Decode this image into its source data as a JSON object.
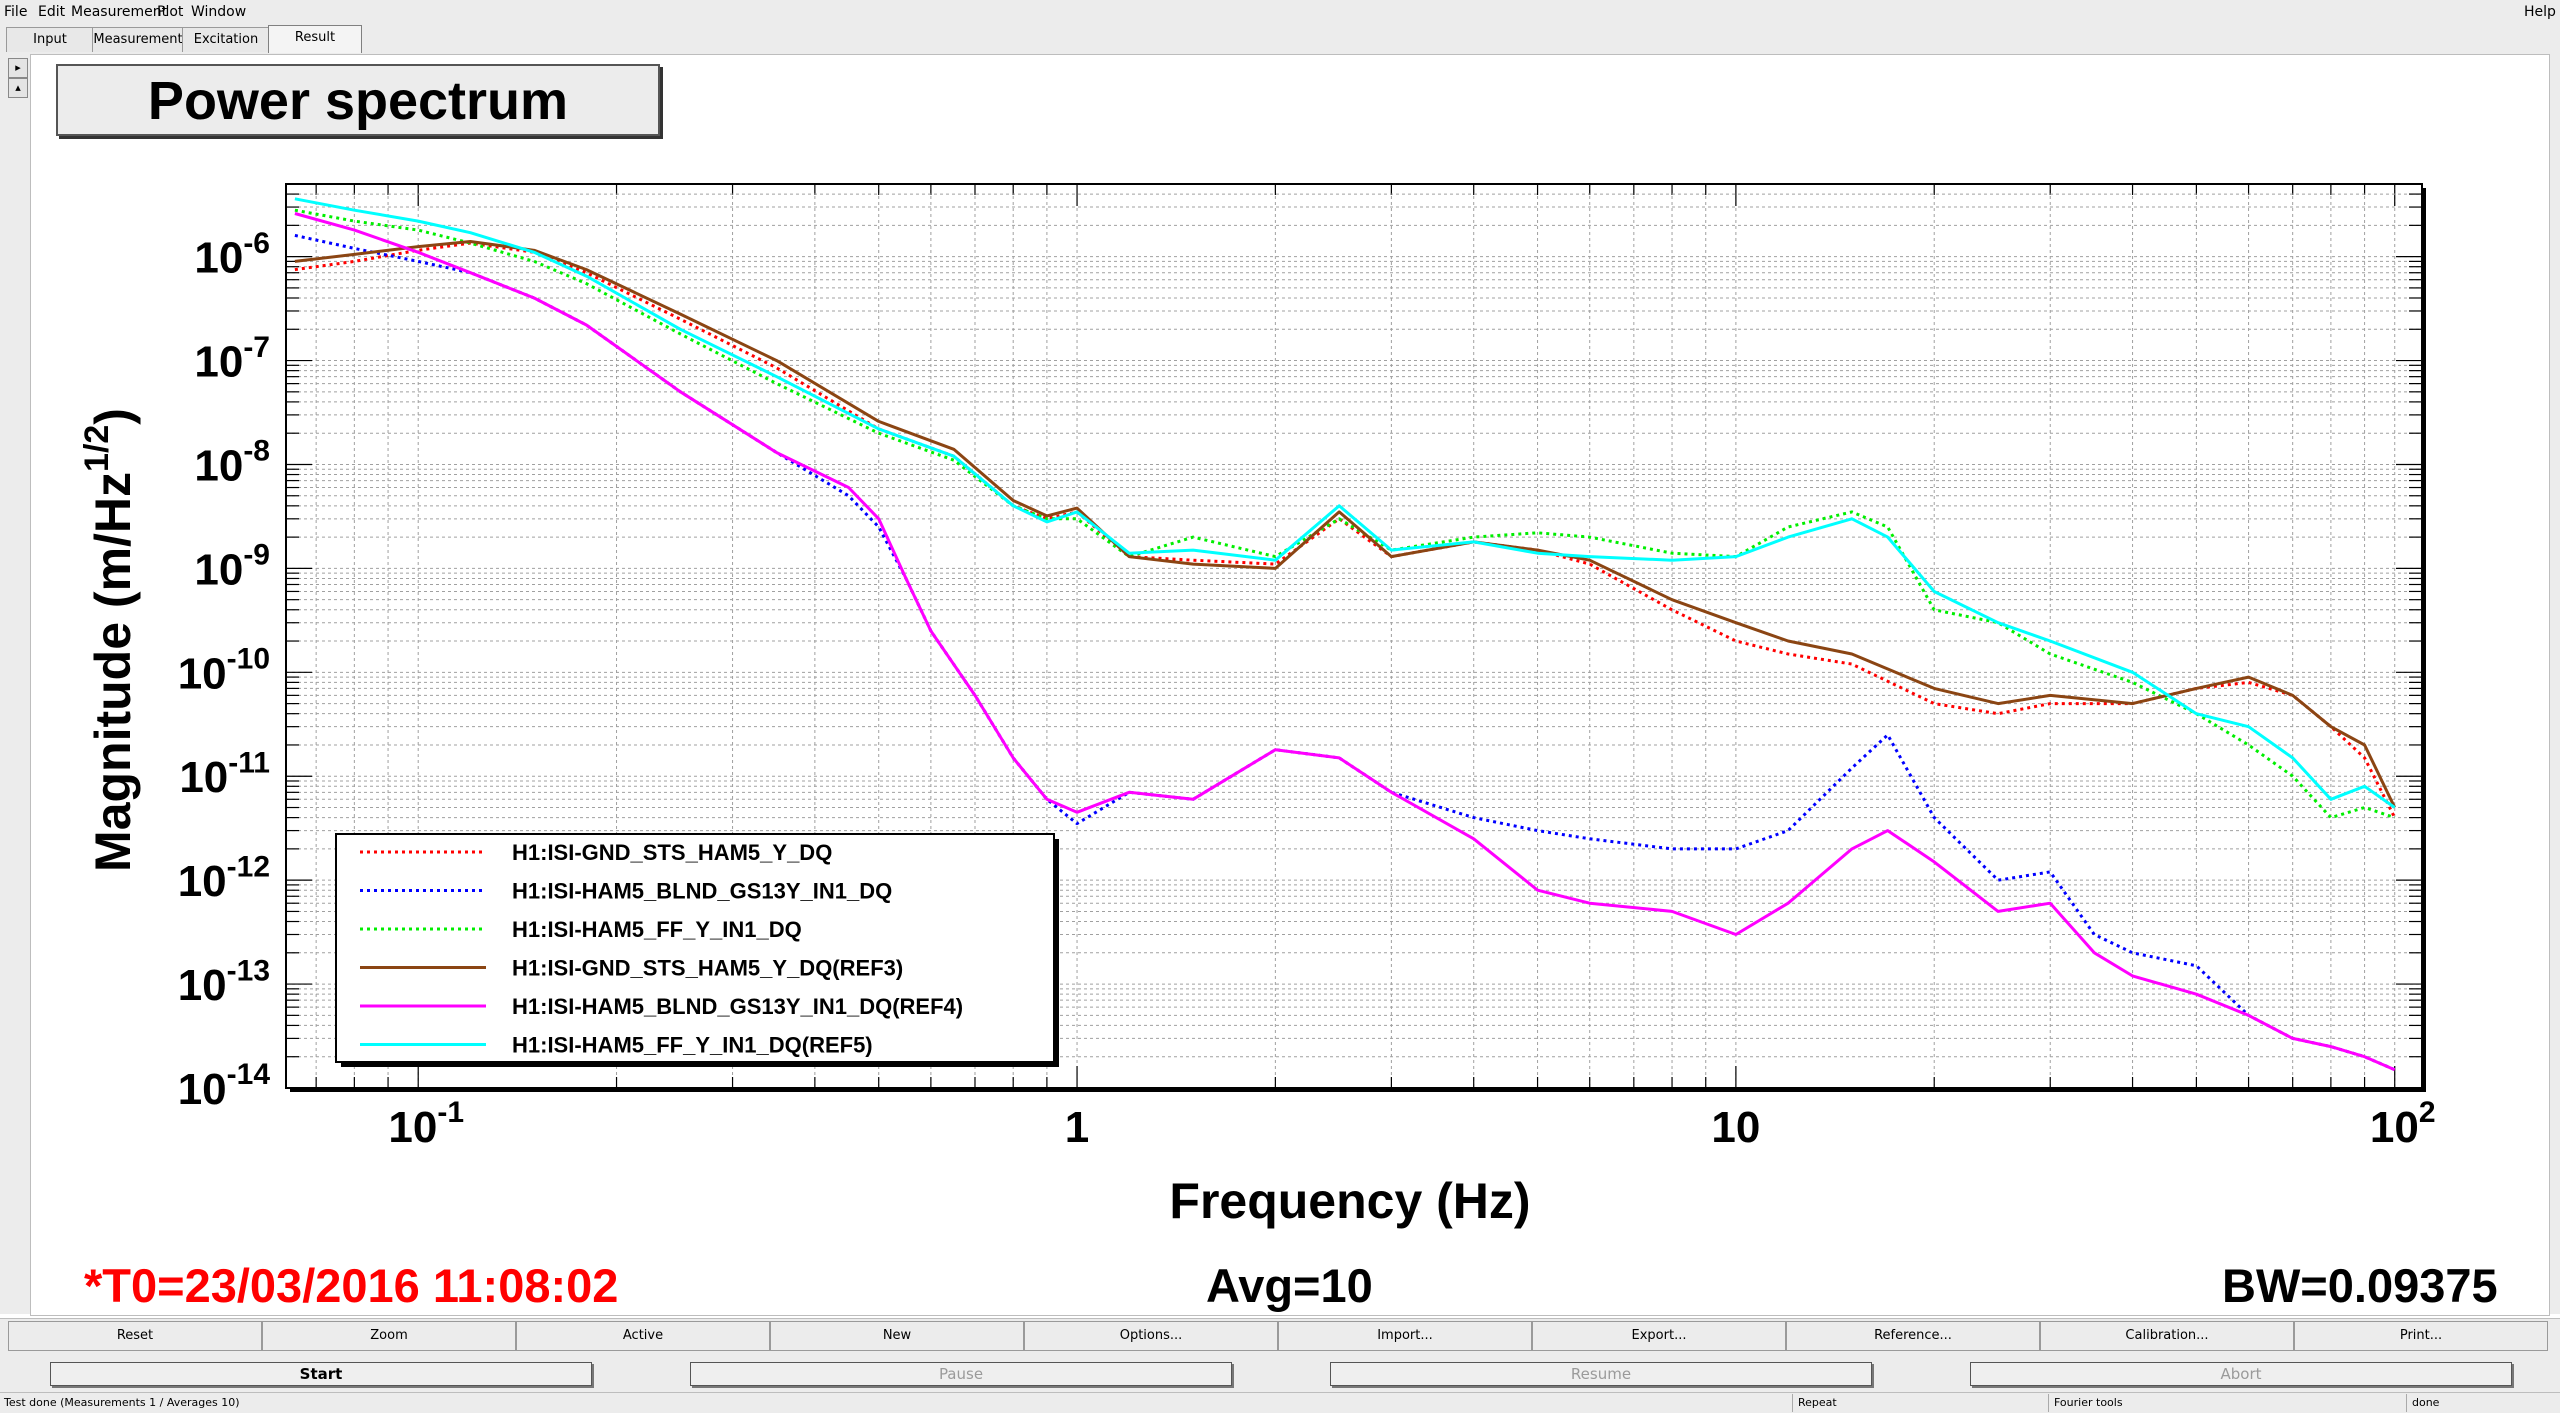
{
  "menu": {
    "file": "File",
    "edit": "Edit",
    "measurement": "Measurement",
    "plot": "Plot",
    "window": "Window",
    "help": "Help"
  },
  "tabs": [
    {
      "label": "Input"
    },
    {
      "label": "Measurement"
    },
    {
      "label": "Excitation"
    },
    {
      "label": "Result"
    }
  ],
  "plot_title": "Power spectrum",
  "chart_data": {
    "type": "line",
    "title": "Power spectrum",
    "xlabel": "Frequency (Hz)",
    "ylabel_main": "Magnitude (m/Hz",
    "ylabel_sup": "1/2",
    "ylabel_close": ")",
    "xscale": "log",
    "yscale": "log",
    "xlim": [
      0.063,
      110
    ],
    "ylim": [
      1e-14,
      5e-06
    ],
    "grid": true,
    "legend_placement": "bottom-left",
    "x_ticks": [
      {
        "value": 0.1,
        "base": "10",
        "exp": "-1"
      },
      {
        "value": 1,
        "base": "1",
        "exp": ""
      },
      {
        "value": 10,
        "base": "10",
        "exp": ""
      },
      {
        "value": 100,
        "base": "10",
        "exp": "2"
      }
    ],
    "y_ticks": [
      {
        "value": 1e-06,
        "base": "10",
        "exp": "-6"
      },
      {
        "value": 1e-07,
        "base": "10",
        "exp": "-7"
      },
      {
        "value": 1e-08,
        "base": "10",
        "exp": "-8"
      },
      {
        "value": 1e-09,
        "base": "10",
        "exp": "-9"
      },
      {
        "value": 1e-10,
        "base": "10",
        "exp": "-10"
      },
      {
        "value": 1e-11,
        "base": "10",
        "exp": "-11"
      },
      {
        "value": 1e-12,
        "base": "10",
        "exp": "-12"
      },
      {
        "value": 1e-13,
        "base": "10",
        "exp": "-13"
      },
      {
        "value": 1e-14,
        "base": "10",
        "exp": "-14"
      }
    ],
    "series": [
      {
        "name": "H1:ISI-GND_STS_HAM5_Y_DQ",
        "color": "#ff0000",
        "dashed": true,
        "x": [
          0.065,
          0.08,
          0.1,
          0.12,
          0.15,
          0.18,
          0.25,
          0.35,
          0.5,
          0.65,
          0.8,
          0.9,
          1.0,
          1.2,
          1.5,
          2.0,
          2.5,
          3.0,
          4.0,
          5.0,
          6.0,
          8.0,
          10.0,
          12.0,
          15.0,
          20.0,
          25.0,
          30.0,
          40.0,
          50.0,
          60.0,
          70.0,
          80.0,
          90.0,
          100.0
        ],
        "y": [
          7.5e-07,
          9e-07,
          1.15e-06,
          1.35e-06,
          1.1e-06,
          7e-07,
          2.5e-07,
          8.5e-08,
          2.2e-08,
          1.2e-08,
          4e-09,
          3e-09,
          3.5e-09,
          1.3e-09,
          1.2e-09,
          1.1e-09,
          3e-09,
          1.3e-09,
          1.8e-09,
          1.5e-09,
          1.1e-09,
          4e-10,
          2e-10,
          1.5e-10,
          1.2e-10,
          5e-11,
          4e-11,
          5e-11,
          5e-11,
          7e-11,
          8e-11,
          6e-11,
          3e-11,
          1.5e-11,
          4e-12
        ]
      },
      {
        "name": "H1:ISI-HAM5_BLND_GS13Y_IN1_DQ",
        "color": "#0000ff",
        "dashed": true,
        "x": [
          0.065,
          0.08,
          0.1,
          0.12,
          0.15,
          0.18,
          0.25,
          0.35,
          0.45,
          0.5,
          0.55,
          0.6,
          0.7,
          0.8,
          0.9,
          1.0,
          1.2,
          1.5,
          2.0,
          2.5,
          3.0,
          4.0,
          5.0,
          6.0,
          8.0,
          10.0,
          12.0,
          15.0,
          17.0,
          20.0,
          25.0,
          30.0,
          35.0,
          40.0,
          50.0,
          60.0,
          70.0,
          80.0,
          90.0,
          100.0
        ],
        "y": [
          1.6e-06,
          1.2e-06,
          9e-07,
          7e-07,
          4e-07,
          2.2e-07,
          5e-08,
          1.3e-08,
          5e-09,
          2.5e-09,
          8e-10,
          2.5e-10,
          6e-11,
          1.5e-11,
          6e-12,
          3.5e-12,
          7e-12,
          6e-12,
          1.8e-11,
          1.5e-11,
          7e-12,
          4e-12,
          3e-12,
          2.5e-12,
          2e-12,
          2e-12,
          3e-12,
          1.2e-11,
          2.5e-11,
          4e-12,
          1e-12,
          1.2e-12,
          3e-13,
          2e-13,
          1.5e-13,
          5e-14,
          3e-14,
          2.5e-14,
          2e-14,
          1.5e-14
        ]
      },
      {
        "name": "H1:ISI-HAM5_FF_Y_IN1_DQ",
        "color": "#00ee00",
        "dashed": true,
        "x": [
          0.065,
          0.08,
          0.1,
          0.12,
          0.15,
          0.18,
          0.25,
          0.35,
          0.5,
          0.65,
          0.8,
          0.9,
          1.0,
          1.2,
          1.5,
          2.0,
          2.5,
          3.0,
          4.0,
          5.0,
          6.0,
          8.0,
          10.0,
          12.0,
          15.0,
          17.0,
          20.0,
          25.0,
          30.0,
          40.0,
          50.0,
          60.0,
          70.0,
          80.0,
          90.0,
          100.0
        ],
        "y": [
          2.8e-06,
          2.2e-06,
          1.8e-06,
          1.35e-06,
          9e-07,
          5.5e-07,
          1.8e-07,
          6e-08,
          2e-08,
          1.1e-08,
          4e-09,
          3e-09,
          3e-09,
          1.3e-09,
          2e-09,
          1.3e-09,
          3e-09,
          1.5e-09,
          2e-09,
          2.2e-09,
          2e-09,
          1.4e-09,
          1.3e-09,
          2.5e-09,
          3.5e-09,
          2.5e-09,
          4e-10,
          3e-10,
          1.5e-10,
          8e-11,
          4e-11,
          2e-11,
          1e-11,
          4e-12,
          5e-12,
          4e-12
        ]
      },
      {
        "name": "H1:ISI-GND_STS_HAM5_Y_DQ(REF3)",
        "color": "#8b4513",
        "dashed": false,
        "x": [
          0.065,
          0.08,
          0.1,
          0.12,
          0.15,
          0.18,
          0.25,
          0.35,
          0.5,
          0.65,
          0.8,
          0.9,
          1.0,
          1.2,
          1.5,
          2.0,
          2.5,
          3.0,
          4.0,
          5.0,
          6.0,
          8.0,
          10.0,
          12.0,
          15.0,
          20.0,
          25.0,
          30.0,
          40.0,
          50.0,
          60.0,
          70.0,
          80.0,
          90.0,
          100.0
        ],
        "y": [
          9e-07,
          1.05e-06,
          1.25e-06,
          1.4e-06,
          1.15e-06,
          7.5e-07,
          2.8e-07,
          1e-07,
          2.6e-08,
          1.4e-08,
          4.5e-09,
          3.2e-09,
          3.8e-09,
          1.3e-09,
          1.1e-09,
          1e-09,
          3.5e-09,
          1.3e-09,
          1.8e-09,
          1.5e-09,
          1.2e-09,
          5e-10,
          3e-10,
          2e-10,
          1.5e-10,
          7e-11,
          5e-11,
          6e-11,
          5e-11,
          7e-11,
          9e-11,
          6e-11,
          3e-11,
          2e-11,
          5e-12
        ]
      },
      {
        "name": "H1:ISI-HAM5_BLND_GS13Y_IN1_DQ(REF4)",
        "color": "#ff00ff",
        "dashed": false,
        "x": [
          0.065,
          0.08,
          0.1,
          0.12,
          0.15,
          0.18,
          0.25,
          0.35,
          0.45,
          0.5,
          0.55,
          0.6,
          0.7,
          0.8,
          0.9,
          1.0,
          1.2,
          1.5,
          2.0,
          2.5,
          3.0,
          4.0,
          5.0,
          6.0,
          8.0,
          10.0,
          12.0,
          15.0,
          17.0,
          20.0,
          25.0,
          30.0,
          35.0,
          40.0,
          50.0,
          60.0,
          70.0,
          80.0,
          90.0,
          100.0
        ],
        "y": [
          2.6e-06,
          1.8e-06,
          1.1e-06,
          7e-07,
          4e-07,
          2.2e-07,
          5e-08,
          1.3e-08,
          6e-09,
          3e-09,
          8e-10,
          2.5e-10,
          6e-11,
          1.5e-11,
          6e-12,
          4.5e-12,
          7e-12,
          6e-12,
          1.8e-11,
          1.5e-11,
          7e-12,
          2.5e-12,
          8e-13,
          6e-13,
          5e-13,
          3e-13,
          6e-13,
          2e-12,
          3e-12,
          1.5e-12,
          5e-13,
          6e-13,
          2e-13,
          1.2e-13,
          8e-14,
          5e-14,
          3e-14,
          2.5e-14,
          2e-14,
          1.5e-14
        ]
      },
      {
        "name": "H1:ISI-HAM5_FF_Y_IN1_DQ(REF5)",
        "color": "#00ffff",
        "dashed": false,
        "x": [
          0.065,
          0.08,
          0.1,
          0.12,
          0.15,
          0.18,
          0.25,
          0.35,
          0.5,
          0.65,
          0.8,
          0.9,
          1.0,
          1.2,
          1.5,
          2.0,
          2.5,
          3.0,
          4.0,
          5.0,
          6.0,
          8.0,
          10.0,
          12.0,
          15.0,
          17.0,
          20.0,
          25.0,
          30.0,
          40.0,
          50.0,
          60.0,
          70.0,
          80.0,
          90.0,
          100.0
        ],
        "y": [
          3.6e-06,
          2.8e-06,
          2.2e-06,
          1.7e-06,
          1.1e-06,
          6.5e-07,
          2e-07,
          7e-08,
          2.2e-08,
          1.2e-08,
          4e-09,
          2.8e-09,
          3.5e-09,
          1.4e-09,
          1.5e-09,
          1.2e-09,
          4e-09,
          1.5e-09,
          1.8e-09,
          1.4e-09,
          1.3e-09,
          1.2e-09,
          1.3e-09,
          2e-09,
          3e-09,
          2e-09,
          6e-10,
          3e-10,
          2e-10,
          1e-10,
          4e-11,
          3e-11,
          1.5e-11,
          6e-12,
          8e-12,
          5e-12
        ]
      }
    ]
  },
  "status": {
    "t0": "*T0=23/03/2016 11:08:02",
    "avg": "Avg=10",
    "bw": "BW=0.09375"
  },
  "buttons_row1": [
    "Reset",
    "Zoom",
    "Active",
    "New",
    "Options...",
    "Import...",
    "Export...",
    "Reference...",
    "Calibration...",
    "Print..."
  ],
  "buttons_row2": [
    {
      "label": "Start",
      "enabled": true
    },
    {
      "label": "Pause",
      "enabled": false
    },
    {
      "label": "Resume",
      "enabled": false
    },
    {
      "label": "Abort",
      "enabled": false
    }
  ],
  "statusbar": {
    "left": "Test done (Measurements 1 / Averages 10)",
    "repeat": "Repeat",
    "fourier": "Fourier tools",
    "right": "done"
  }
}
